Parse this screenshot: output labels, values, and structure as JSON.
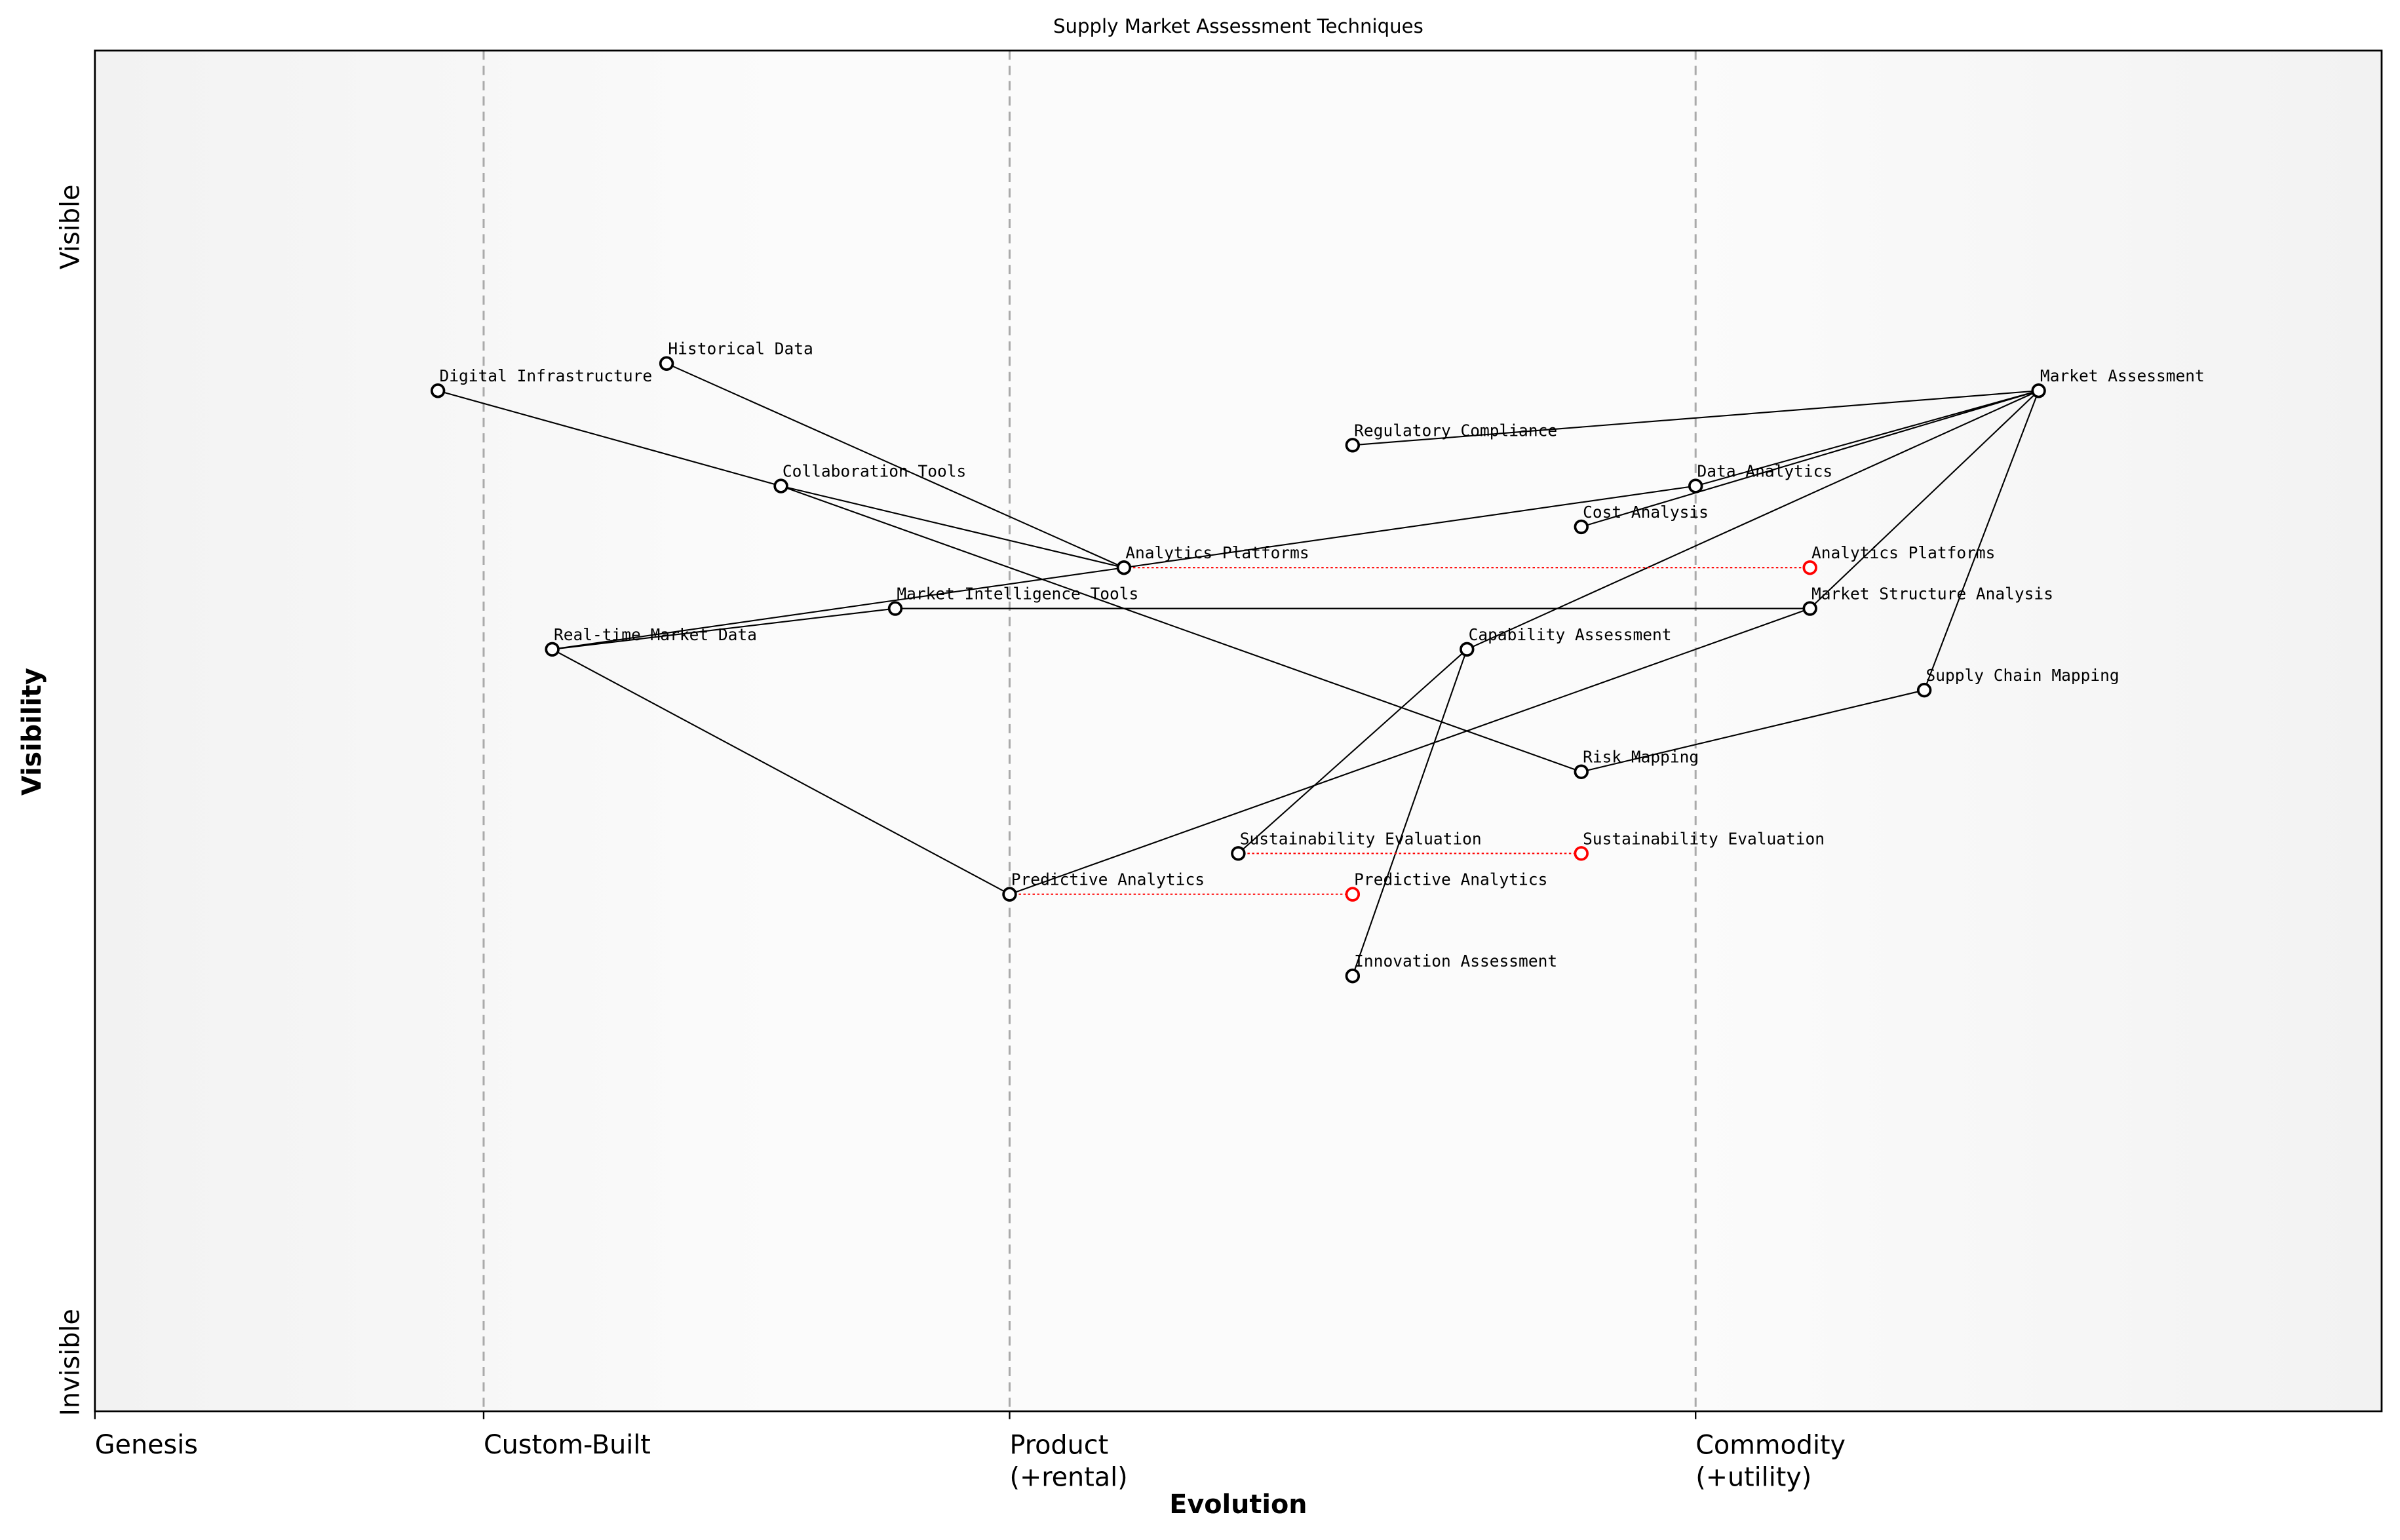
{
  "chart_data": {
    "type": "wardley",
    "title": "Supply Market Assessment Techniques",
    "xlabel": "Evolution",
    "ylabel": "Visibility",
    "y_axis_labels": [
      "Visible",
      "Invisible"
    ],
    "xlim": [
      0,
      1
    ],
    "ylim": [
      0,
      1
    ],
    "xticks": [
      {
        "value": 0,
        "label": "Genesis"
      },
      {
        "value": 0.17,
        "label": "Custom-Built"
      },
      {
        "value": 0.4,
        "label": "Product\n(+rental)"
      },
      {
        "value": 0.7,
        "label": "Commodity\n(+utility)"
      }
    ],
    "components": [
      {
        "name": "Market Assessment",
        "x": 0.85,
        "y": 0.75
      },
      {
        "name": "Regulatory Compliance",
        "x": 0.55,
        "y": 0.71
      },
      {
        "name": "Data Analytics",
        "x": 0.7,
        "y": 0.68
      },
      {
        "name": "Cost Analysis",
        "x": 0.65,
        "y": 0.65
      },
      {
        "name": "Analytics Platforms",
        "x": 0.45,
        "y": 0.62
      },
      {
        "name": "Market Structure Analysis",
        "x": 0.75,
        "y": 0.59
      },
      {
        "name": "Market Intelligence Tools",
        "x": 0.35,
        "y": 0.59
      },
      {
        "name": "Real-time Market Data",
        "x": 0.2,
        "y": 0.56
      },
      {
        "name": "Capability Assessment",
        "x": 0.6,
        "y": 0.56
      },
      {
        "name": "Supply Chain Mapping",
        "x": 0.8,
        "y": 0.53
      },
      {
        "name": "Risk Mapping",
        "x": 0.65,
        "y": 0.47
      },
      {
        "name": "Sustainability Evaluation",
        "x": 0.5,
        "y": 0.41
      },
      {
        "name": "Predictive Analytics",
        "x": 0.4,
        "y": 0.38
      },
      {
        "name": "Innovation Assessment",
        "x": 0.55,
        "y": 0.32
      },
      {
        "name": "Historical Data",
        "x": 0.25,
        "y": 0.77
      },
      {
        "name": "Digital Infrastructure",
        "x": 0.15,
        "y": 0.75
      },
      {
        "name": "Collaboration Tools",
        "x": 0.3,
        "y": 0.68
      }
    ],
    "links": [
      [
        0,
        1
      ],
      [
        0,
        2
      ],
      [
        0,
        3
      ],
      [
        0,
        8
      ],
      [
        0,
        5
      ],
      [
        0,
        9
      ],
      [
        2,
        4
      ],
      [
        8,
        13
      ],
      [
        8,
        11
      ],
      [
        5,
        6
      ],
      [
        5,
        12
      ],
      [
        9,
        10
      ],
      [
        10,
        16
      ],
      [
        4,
        14
      ],
      [
        4,
        16
      ],
      [
        4,
        7
      ],
      [
        6,
        7
      ],
      [
        12,
        7
      ],
      [
        16,
        15
      ]
    ],
    "evolutions": [
      {
        "component": 4,
        "x": 0.75
      },
      {
        "component": 11,
        "x": 0.65
      },
      {
        "component": 12,
        "x": 0.55
      }
    ],
    "node_color": "#000000",
    "evolved_color": "#ff0000"
  }
}
